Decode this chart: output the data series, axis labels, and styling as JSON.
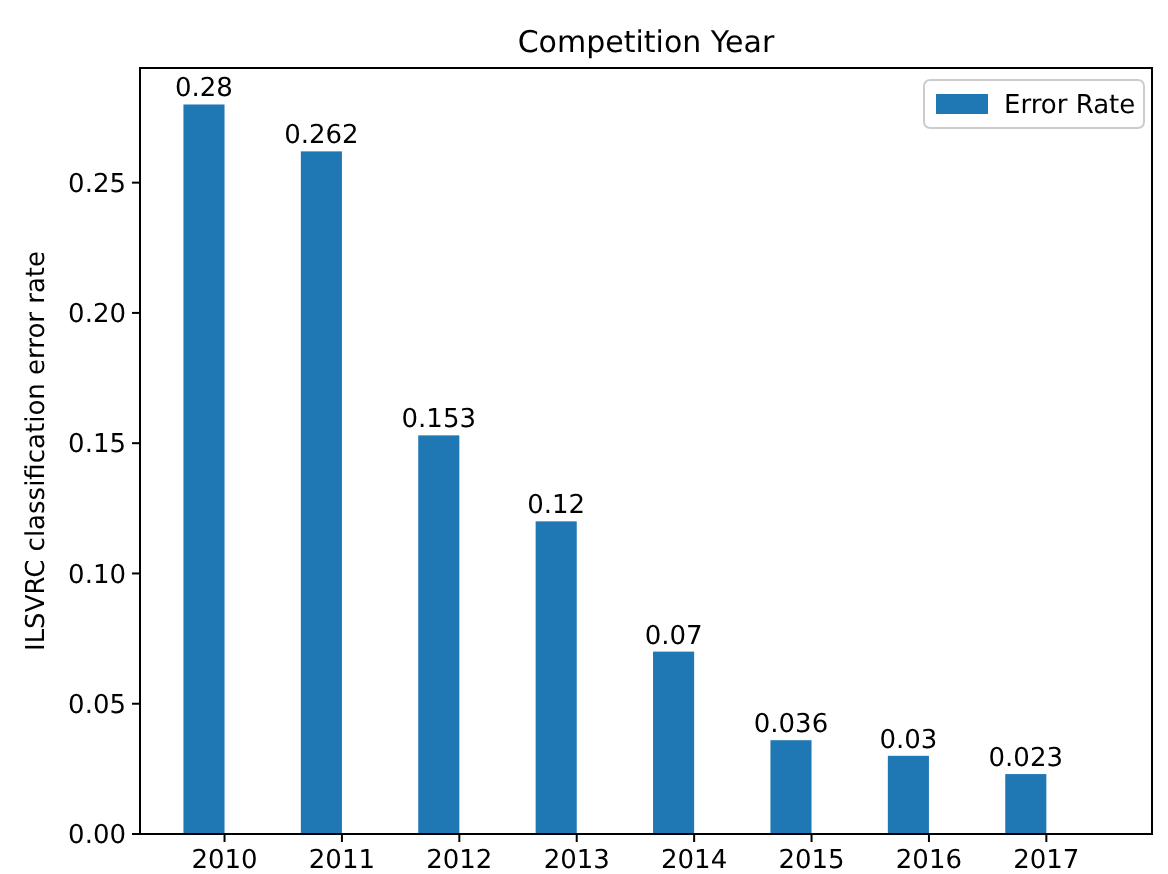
{
  "chart_data": {
    "type": "bar",
    "title": "Competition Year",
    "ylabel": "ILSVRC classification error rate",
    "categories": [
      "2010",
      "2011",
      "2012",
      "2013",
      "2014",
      "2015",
      "2016",
      "2017"
    ],
    "series": [
      {
        "name": "Error Rate",
        "color": "#1f77b4",
        "values": [
          0.28,
          0.262,
          0.153,
          0.12,
          0.07,
          0.036,
          0.03,
          0.023
        ]
      }
    ],
    "ylim": [
      0,
      0.294
    ],
    "yticks": [
      {
        "value": 0,
        "label": "0.00"
      },
      {
        "value": 0.05,
        "label": "0.05"
      },
      {
        "value": 0.1,
        "label": "0.10"
      },
      {
        "value": 0.15,
        "label": "0.15"
      },
      {
        "value": 0.2,
        "label": "0.20"
      },
      {
        "value": 0.25,
        "label": "0.25"
      }
    ],
    "data_labels": true,
    "legend": "top right",
    "grid": false
  }
}
